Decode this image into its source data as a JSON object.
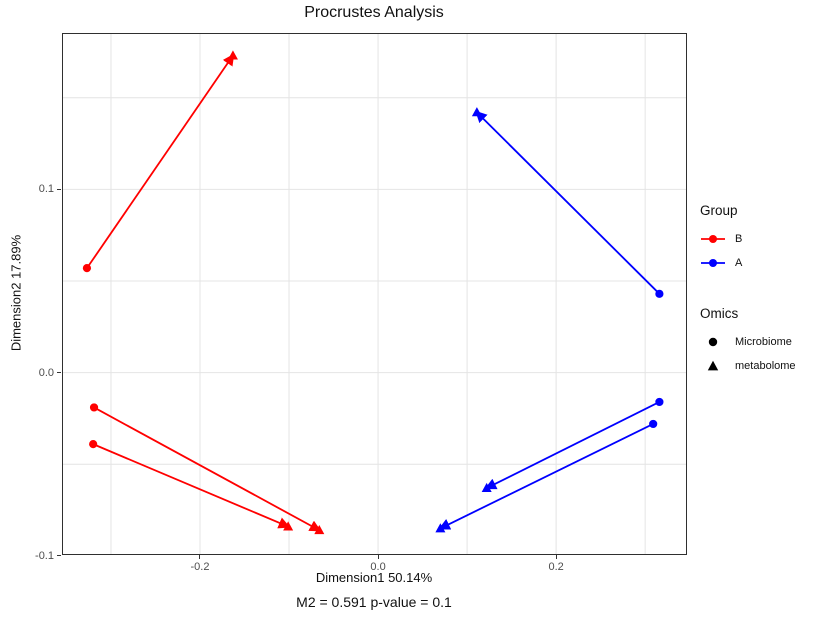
{
  "title": "Procrustes Analysis",
  "caption": "M2 = 0.591  p-value = 0.1",
  "axes": {
    "x_label": "Dimension1 50.14%",
    "y_label": "Dimension2 17.89%"
  },
  "legend": {
    "group_title": "Group",
    "group_items": [
      {
        "label": "B",
        "color": "#FF0000"
      },
      {
        "label": "A",
        "color": "#0000FF"
      }
    ],
    "omics_title": "Omics",
    "omics_items": [
      {
        "label": "Microbiome",
        "marker": "circle"
      },
      {
        "label": "metabolome",
        "marker": "triangle"
      }
    ]
  },
  "colors": {
    "group_B": "#FF0000",
    "group_A": "#0000FF",
    "grid": "#E4E4E4",
    "panel_border": "#2F2F2F",
    "tick_label": "#4D4D4D",
    "background": "#FFFFFF"
  },
  "chart_data": {
    "type": "scatter",
    "title": "Procrustes Analysis",
    "xlabel": "Dimension1 50.14%",
    "ylabel": "Dimension2 17.89%",
    "annotation": "M2 = 0.591  p-value = 0.1",
    "grid": true,
    "legend_position": "right",
    "xlim": [
      -0.355,
      0.347
    ],
    "ylim": [
      -0.0995,
      0.1853
    ],
    "x_ticks": [
      {
        "v": -0.2,
        "label": "-0.2"
      },
      {
        "v": 0.0,
        "label": "0.0"
      },
      {
        "v": 0.2,
        "label": "0.2"
      }
    ],
    "y_ticks": [
      {
        "v": -0.1,
        "label": "-0.1"
      },
      {
        "v": 0.0,
        "label": "0.0"
      },
      {
        "v": 0.1,
        "label": "0.1"
      }
    ],
    "x_grid": [
      -0.3,
      -0.2,
      -0.1,
      0.0,
      0.1,
      0.2,
      0.3
    ],
    "y_grid": [
      -0.1,
      -0.05,
      0.0,
      0.05,
      0.1,
      0.15
    ],
    "series": [
      {
        "name": "B",
        "color": "#FF0000",
        "pairs": [
          {
            "microbiome": [
              -0.327,
              0.057
            ],
            "metabolome": [
              -0.163,
              0.173
            ]
          },
          {
            "microbiome": [
              -0.319,
              -0.019
            ],
            "metabolome": [
              -0.066,
              -0.086
            ]
          },
          {
            "microbiome": [
              -0.32,
              -0.039
            ],
            "metabolome": [
              -0.101,
              -0.084
            ]
          }
        ]
      },
      {
        "name": "A",
        "color": "#0000FF",
        "pairs": [
          {
            "microbiome": [
              0.316,
              0.043
            ],
            "metabolome": [
              0.111,
              0.142
            ]
          },
          {
            "microbiome": [
              0.316,
              -0.016
            ],
            "metabolome": [
              0.122,
              -0.063
            ]
          },
          {
            "microbiome": [
              0.309,
              -0.028
            ],
            "metabolome": [
              0.07,
              -0.085
            ]
          }
        ]
      }
    ]
  }
}
